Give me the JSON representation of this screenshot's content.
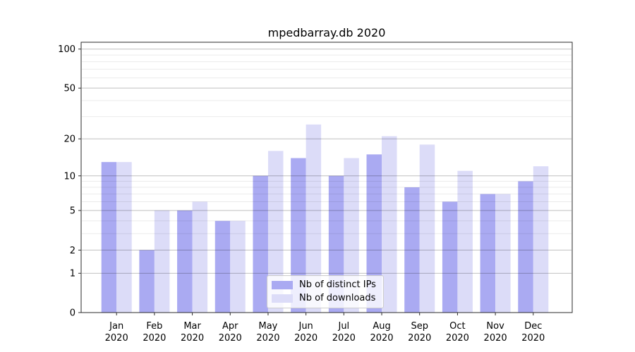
{
  "chart_data": {
    "type": "bar",
    "title": "mpedbarray.db 2020",
    "categories": [
      "Jan",
      "Feb",
      "Mar",
      "Apr",
      "May",
      "Jun",
      "Jul",
      "Aug",
      "Sep",
      "Oct",
      "Nov",
      "Dec"
    ],
    "year_label": "2020",
    "series": [
      {
        "name": "Nb of distinct IPs",
        "color": "#aaaaf2",
        "values": [
          13,
          2,
          5,
          4,
          10,
          14,
          10,
          15,
          8,
          6,
          7,
          9
        ]
      },
      {
        "name": "Nb of downloads",
        "color": "#dcdcf8",
        "values": [
          13,
          5,
          6,
          4,
          16,
          26,
          14,
          21,
          18,
          11,
          7,
          12
        ]
      }
    ],
    "xlabel": "",
    "ylabel": "",
    "yscale": "log1p",
    "ylim": [
      0,
      111
    ],
    "yticks": [
      0,
      1,
      2,
      5,
      10,
      20,
      50,
      100
    ],
    "y_minor_ticks": [
      3,
      4,
      6,
      7,
      8,
      9,
      30,
      40,
      60,
      70,
      80,
      90
    ],
    "grid": true,
    "grid_above_bars": true,
    "legend_position": "lower center",
    "colors": {
      "spine": "#2b2b2b",
      "major_grid": "rgba(0,0,0,0.25)",
      "minor_grid": "rgba(0,0,0,0.08)",
      "text": "#000000"
    }
  }
}
